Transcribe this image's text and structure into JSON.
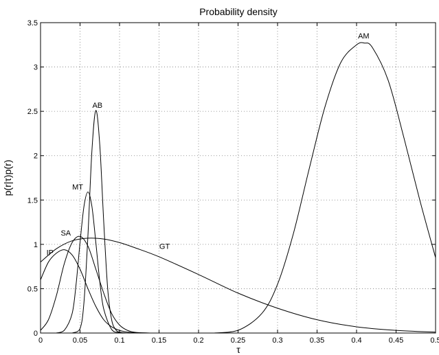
{
  "chart_data": {
    "type": "line",
    "title": "Probability density",
    "xlabel": "τ",
    "ylabel": "p(r|τ)p(r)",
    "xlim": [
      0,
      0.5
    ],
    "ylim": [
      0,
      3.5
    ],
    "grid": true,
    "x_ticks": [
      "0",
      "0.05",
      "0.1",
      "0.15",
      "0.2",
      "0.25",
      "0.3",
      "0.35",
      "0.4",
      "0.45",
      "0.5"
    ],
    "y_ticks": [
      "0",
      "0.5",
      "1",
      "1.5",
      "2",
      "2.5",
      "3",
      "3.5"
    ],
    "series": [
      {
        "name": "IP",
        "x": [
          0,
          0.01,
          0.02,
          0.03,
          0.04,
          0.05,
          0.06,
          0.07,
          0.08,
          0.09,
          0.1,
          0.11,
          0.12,
          0.14
        ],
        "values": [
          0.6,
          0.8,
          0.9,
          0.94,
          0.88,
          0.72,
          0.5,
          0.3,
          0.15,
          0.07,
          0.03,
          0.01,
          0.003,
          0
        ]
      },
      {
        "name": "SA",
        "x": [
          0,
          0.01,
          0.02,
          0.03,
          0.04,
          0.05,
          0.06,
          0.07,
          0.08,
          0.09,
          0.1,
          0.11,
          0.12,
          0.14
        ],
        "values": [
          0.03,
          0.15,
          0.42,
          0.78,
          1.02,
          1.09,
          0.98,
          0.72,
          0.45,
          0.22,
          0.09,
          0.03,
          0.008,
          0
        ]
      },
      {
        "name": "MT",
        "x": [
          0.02,
          0.03,
          0.04,
          0.045,
          0.05,
          0.055,
          0.06,
          0.065,
          0.07,
          0.075,
          0.08,
          0.09,
          0.1,
          0.11
        ],
        "values": [
          0,
          0.03,
          0.22,
          0.55,
          1.02,
          1.43,
          1.59,
          1.43,
          1.02,
          0.58,
          0.27,
          0.04,
          0.004,
          0
        ]
      },
      {
        "name": "AB",
        "x": [
          0.04,
          0.05,
          0.055,
          0.06,
          0.065,
          0.07,
          0.075,
          0.08,
          0.085,
          0.09,
          0.095,
          0.1,
          0.11
        ],
        "values": [
          0,
          0.05,
          0.35,
          1.1,
          2.05,
          2.51,
          2.12,
          1.25,
          0.5,
          0.15,
          0.04,
          0.01,
          0
        ]
      },
      {
        "name": "GT",
        "x": [
          0,
          0.02,
          0.04,
          0.06,
          0.08,
          0.1,
          0.12,
          0.15,
          0.2,
          0.25,
          0.3,
          0.35,
          0.4,
          0.45,
          0.5
        ],
        "values": [
          0.8,
          0.95,
          1.04,
          1.07,
          1.06,
          1.02,
          0.96,
          0.86,
          0.66,
          0.45,
          0.28,
          0.15,
          0.07,
          0.03,
          0.01
        ]
      },
      {
        "name": "AM",
        "x": [
          0.22,
          0.25,
          0.28,
          0.3,
          0.32,
          0.34,
          0.36,
          0.38,
          0.4,
          0.41,
          0.42,
          0.44,
          0.46,
          0.48,
          0.5
        ],
        "values": [
          0,
          0.03,
          0.22,
          0.55,
          1.12,
          1.85,
          2.55,
          3.05,
          3.25,
          3.27,
          3.22,
          2.85,
          2.2,
          1.5,
          0.85
        ]
      }
    ],
    "annotations": [
      {
        "text": "IP",
        "x": 0.012,
        "y": 0.88
      },
      {
        "text": "SA",
        "x": 0.032,
        "y": 1.1
      },
      {
        "text": "MT",
        "x": 0.047,
        "y": 1.62
      },
      {
        "text": "AB",
        "x": 0.072,
        "y": 2.54
      },
      {
        "text": "GT",
        "x": 0.157,
        "y": 0.95
      },
      {
        "text": "AM",
        "x": 0.409,
        "y": 3.32
      }
    ]
  }
}
